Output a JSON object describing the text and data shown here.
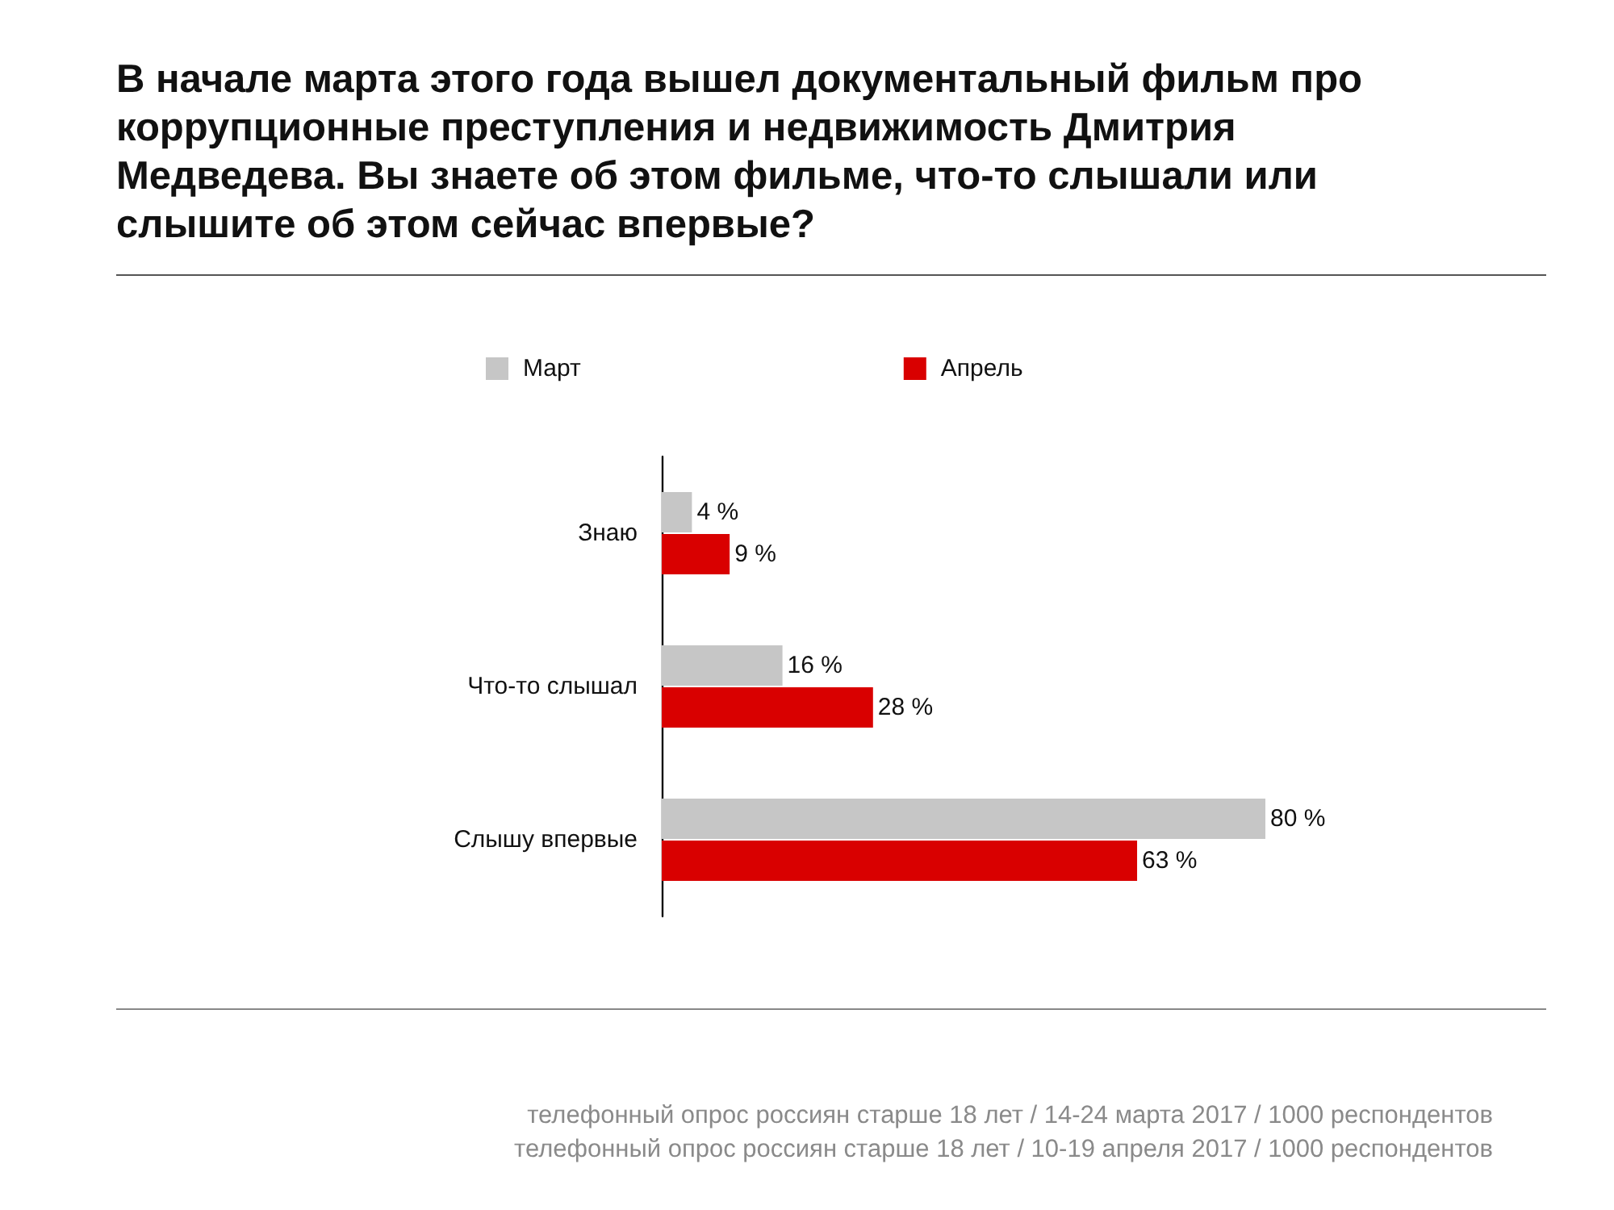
{
  "chart_data": {
    "type": "bar",
    "orientation": "horizontal",
    "title": "В начале марта этого года вышел документальный фильм про коррупционные преступления и недвижимость Дмитрия Медведева. Вы знаете об этом фильме, что-то слышали или слышите об этом сейчас впервые?",
    "categories": [
      "Знаю",
      "Что-то слышал",
      "Слышу впервые"
    ],
    "series": [
      {
        "name": "Март",
        "color": "#c6c6c6",
        "values": [
          4,
          16,
          80
        ],
        "value_labels": [
          "4 %",
          "16 %",
          "80 %"
        ]
      },
      {
        "name": "Апрель",
        "color": "#d90000",
        "values": [
          9,
          28,
          63
        ],
        "value_labels": [
          "9 %",
          "28 %",
          "63 %"
        ]
      }
    ],
    "tick_labels": "y",
    "legend": "top",
    "annotations": [
      "телефонный опрос россиян старше 18 лет / 14-24 марта 2017 / 1000 респондентов",
      "телефонный опрос россиян старше 18 лет / 10-19 апреля 2017 / 1000 респондентов"
    ]
  }
}
